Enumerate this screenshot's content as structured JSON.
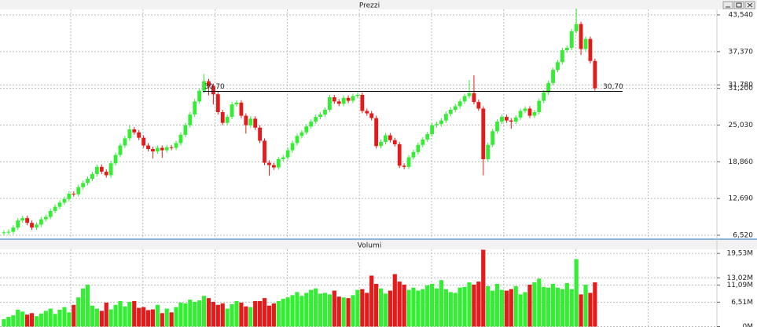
{
  "chart_data": [
    {
      "type": "candlestick",
      "title": "Prezzi",
      "colors": {
        "up": "#33ee33",
        "down": "#e61a1a"
      },
      "open": [
        6.9,
        7.0,
        7.1,
        7.8,
        9.0,
        9.4,
        8.6,
        7.8,
        8.3,
        9.2,
        9.6,
        10.6,
        11.3,
        12.0,
        12.6,
        13.5,
        13.4,
        14.6,
        15.3,
        16.0,
        16.8,
        18.0,
        17.2,
        16.6,
        18.6,
        20.0,
        21.6,
        22.8,
        24.3,
        23.8,
        22.9,
        21.6,
        21.0,
        20.6,
        21.2,
        20.8,
        21.3,
        21.2,
        22.0,
        23.4,
        25.0,
        26.8,
        29.0,
        30.8,
        32.4,
        31.6,
        30.2,
        27.2,
        25.4,
        26.4,
        28.5,
        28.8,
        26.6,
        25.0,
        26.1,
        24.6,
        22.4,
        18.7,
        18.3,
        17.9,
        19.3,
        19.6,
        20.8,
        22.0,
        23.2,
        23.8,
        24.8,
        25.6,
        26.4,
        26.8,
        27.6,
        29.7,
        29.0,
        28.6,
        29.6,
        29.1,
        29.9,
        30.1,
        27.4,
        27.0,
        26.2,
        21.5,
        22.2,
        23.3,
        22.5,
        21.8,
        18.2,
        18.0,
        19.6,
        20.5,
        21.7,
        22.6,
        23.5,
        25.0,
        25.2,
        25.8,
        26.9,
        27.6,
        28.2,
        29.0,
        29.9,
        30.4,
        28.9,
        27.8,
        19.3,
        21.7,
        24.0,
        25.6,
        26.4,
        25.8,
        25.6,
        26.3,
        27.4,
        27.8,
        26.6,
        27.2,
        29.1,
        30.5,
        32.1,
        34.3,
        35.6,
        37.6,
        38.0,
        40.8,
        42.0,
        37.8,
        39.5,
        35.8
      ],
      "high": [
        7.4,
        7.5,
        8.2,
        9.4,
        9.8,
        9.8,
        9.0,
        8.7,
        9.6,
        10.0,
        11.0,
        11.7,
        12.4,
        13.0,
        13.9,
        13.9,
        15.0,
        15.7,
        16.4,
        17.2,
        18.4,
        18.4,
        17.6,
        19.0,
        20.4,
        22.0,
        23.2,
        25.0,
        24.7,
        24.2,
        23.3,
        22.0,
        21.4,
        21.6,
        21.6,
        21.7,
        21.7,
        22.4,
        23.8,
        25.4,
        27.2,
        29.4,
        31.2,
        33.6,
        32.8,
        32.0,
        30.6,
        27.6,
        26.8,
        28.9,
        29.2,
        29.2,
        27.0,
        26.5,
        26.5,
        25.0,
        22.8,
        19.1,
        18.7,
        19.7,
        20.0,
        21.2,
        22.4,
        23.6,
        24.2,
        25.2,
        26.0,
        26.8,
        27.2,
        28.0,
        30.1,
        30.1,
        29.4,
        30.0,
        30.0,
        30.3,
        30.5,
        30.5,
        27.8,
        27.4,
        26.6,
        22.6,
        23.7,
        23.7,
        22.9,
        22.2,
        18.6,
        20.0,
        20.9,
        22.1,
        23.0,
        23.9,
        25.4,
        25.6,
        26.2,
        27.3,
        28.0,
        28.6,
        29.4,
        30.3,
        32.6,
        33.4,
        29.3,
        28.2,
        22.1,
        24.4,
        26.0,
        26.8,
        26.8,
        26.2,
        26.7,
        27.8,
        28.2,
        28.2,
        27.6,
        29.5,
        30.9,
        32.5,
        34.7,
        36.0,
        38.0,
        38.4,
        41.2,
        44.6,
        42.4,
        39.9,
        39.9,
        36.2
      ],
      "low": [
        6.5,
        6.6,
        6.7,
        7.4,
        8.6,
        8.2,
        7.4,
        7.4,
        7.9,
        8.8,
        9.2,
        10.2,
        10.9,
        11.6,
        12.2,
        13.0,
        13.0,
        14.2,
        14.9,
        15.6,
        16.4,
        16.8,
        16.2,
        16.2,
        18.2,
        19.6,
        21.2,
        22.4,
        23.4,
        22.5,
        21.2,
        20.6,
        19.4,
        20.2,
        19.5,
        20.4,
        20.8,
        20.8,
        21.6,
        23.0,
        24.6,
        26.4,
        28.6,
        30.4,
        30.0,
        28.5,
        26.8,
        25.0,
        25.0,
        26.0,
        28.1,
        26.2,
        23.6,
        24.6,
        24.2,
        22.0,
        18.3,
        16.5,
        17.5,
        17.5,
        18.9,
        19.2,
        20.4,
        21.6,
        22.8,
        23.4,
        24.4,
        25.2,
        26.0,
        26.4,
        27.2,
        28.6,
        28.2,
        28.2,
        28.7,
        28.7,
        29.5,
        27.0,
        26.6,
        25.8,
        21.1,
        21.1,
        21.8,
        22.1,
        21.4,
        17.8,
        17.6,
        17.6,
        19.2,
        20.1,
        21.3,
        22.2,
        23.1,
        24.6,
        24.8,
        25.4,
        26.5,
        27.2,
        27.8,
        28.6,
        29.5,
        28.5,
        27.4,
        16.6,
        18.9,
        21.3,
        23.6,
        25.2,
        25.4,
        24.4,
        25.2,
        25.9,
        27.0,
        26.2,
        26.2,
        26.8,
        28.7,
        30.1,
        31.7,
        33.9,
        35.2,
        37.2,
        37.6,
        40.4,
        36.8,
        37.4,
        35.4,
        30.8
      ],
      "close": [
        7.0,
        7.1,
        7.8,
        9.0,
        9.4,
        8.6,
        7.8,
        8.3,
        9.2,
        9.6,
        10.6,
        11.3,
        12.0,
        12.6,
        13.5,
        13.4,
        14.6,
        15.3,
        16.0,
        16.8,
        18.0,
        17.2,
        16.6,
        18.6,
        20.0,
        21.6,
        22.8,
        24.3,
        23.8,
        22.9,
        21.6,
        21.0,
        20.6,
        21.2,
        20.8,
        21.3,
        21.2,
        22.0,
        23.4,
        25.0,
        26.8,
        29.0,
        30.8,
        32.4,
        31.6,
        30.2,
        27.2,
        25.4,
        26.4,
        28.5,
        28.8,
        26.6,
        25.0,
        26.1,
        24.6,
        22.4,
        18.7,
        18.3,
        17.9,
        19.3,
        19.6,
        20.8,
        22.0,
        23.2,
        23.8,
        24.8,
        25.6,
        26.4,
        26.8,
        27.6,
        29.7,
        29.0,
        28.6,
        29.6,
        29.1,
        29.9,
        30.1,
        27.4,
        27.0,
        26.2,
        21.5,
        22.2,
        23.3,
        22.5,
        21.8,
        18.2,
        18.0,
        19.6,
        20.5,
        21.7,
        22.6,
        23.5,
        25.0,
        25.2,
        25.8,
        26.9,
        27.6,
        28.2,
        29.0,
        29.9,
        30.4,
        28.9,
        27.8,
        19.3,
        21.7,
        24.0,
        25.6,
        26.4,
        25.8,
        25.6,
        26.3,
        27.4,
        27.8,
        26.6,
        27.2,
        29.1,
        30.5,
        32.1,
        34.3,
        35.6,
        37.6,
        38.0,
        40.8,
        42.0,
        37.8,
        39.5,
        35.8,
        31.2
      ],
      "reference_line": {
        "value": 30.7,
        "label": "30,70"
      },
      "ylim": [
        6.12,
        44.46
      ],
      "yticks": [
        {
          "value": 43.54,
          "label": "43,540"
        },
        {
          "value": 37.37,
          "label": "37,370"
        },
        {
          "value": 31.78,
          "label": "31,780"
        },
        {
          "value": 31.2,
          "label": "31,200"
        },
        {
          "value": 25.03,
          "label": "25,030"
        },
        {
          "value": 18.86,
          "label": "18,860"
        },
        {
          "value": 12.69,
          "label": "12,690"
        },
        {
          "value": 6.52,
          "label": "6,520"
        }
      ],
      "grid": true
    },
    {
      "type": "bar",
      "title": "Volumi",
      "values": [
        2.0,
        2.6,
        3.0,
        4.5,
        4.0,
        3.2,
        3.6,
        2.8,
        3.5,
        4.2,
        4.8,
        3.4,
        4.5,
        5.2,
        3.8,
        5.8,
        7.8,
        10.2,
        11.2,
        5.6,
        4.8,
        4.2,
        6.4,
        4.6,
        5.8,
        6.8,
        5.4,
        6.6,
        6.8,
        5.0,
        5.2,
        4.4,
        4.6,
        5.8,
        3.6,
        4.8,
        3.8,
        5.2,
        6.4,
        6.2,
        7.2,
        6.6,
        7.0,
        8.2,
        7.6,
        6.6,
        5.8,
        6.2,
        4.8,
        6.0,
        6.8,
        6.4,
        5.4,
        5.2,
        6.8,
        6.8,
        7.6,
        5.6,
        6.2,
        6.8,
        7.4,
        7.8,
        8.4,
        9.2,
        8.2,
        9.0,
        9.8,
        10.2,
        8.8,
        9.0,
        8.6,
        9.6,
        8.0,
        7.8,
        7.6,
        8.4,
        9.8,
        10.0,
        9.0,
        13.6,
        11.4,
        10.2,
        8.8,
        9.6,
        14.0,
        12.0,
        11.2,
        9.8,
        10.4,
        9.6,
        10.0,
        11.0,
        11.4,
        10.2,
        12.4,
        10.0,
        9.2,
        9.0,
        10.4,
        10.6,
        11.8,
        11.2,
        12.0,
        20.5,
        10.8,
        9.6,
        11.4,
        9.8,
        9.6,
        10.0,
        10.8,
        8.6,
        9.2,
        11.2,
        11.8,
        12.8,
        10.6,
        10.4,
        11.4,
        10.4,
        10.0,
        11.6,
        10.0,
        18.0,
        8.6,
        11.2,
        9.0,
        11.8
      ],
      "ylim": [
        0,
        20.5
      ],
      "yticks": [
        {
          "value": 19.53,
          "label": "19,53M"
        },
        {
          "value": 13.02,
          "label": "13,02M"
        },
        {
          "value": 11.09,
          "label": "11,09M"
        },
        {
          "value": 6.51,
          "label": "6,51M"
        },
        {
          "value": 0,
          "label": "0M"
        }
      ],
      "grid": true
    }
  ]
}
